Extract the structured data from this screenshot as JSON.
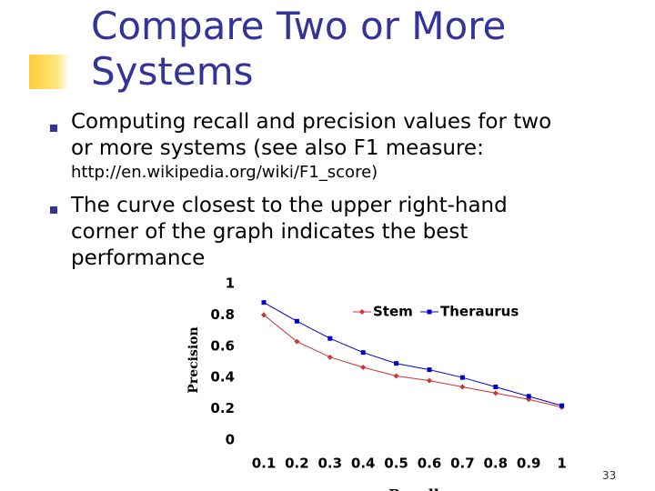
{
  "title": [
    "Compare Two or More",
    "Systems"
  ],
  "bullets": [
    {
      "lines": [
        "Computing recall and precision values for two",
        "or more systems (see also F1 measure:"
      ],
      "link": "http://en.wikipedia.org/wiki/F1_score)"
    },
    {
      "lines": [
        "The curve closest to the upper right-hand",
        "corner of the graph indicates the best",
        "performance"
      ]
    }
  ],
  "page_number": "33",
  "chart_data": {
    "type": "line",
    "x_label": "Recall",
    "y_label": "Precision",
    "categories": [
      "0.1",
      "0.2",
      "0.3",
      "0.4",
      "0.5",
      "0.6",
      "0.7",
      "0.8",
      "0.9",
      "1"
    ],
    "series": [
      {
        "name": "Stem",
        "color": "#cc3333",
        "marker": "diamond",
        "values": [
          0.8,
          0.63,
          0.53,
          0.465,
          0.41,
          0.38,
          0.34,
          0.3,
          0.26,
          0.21
        ]
      },
      {
        "name": "Theraurus",
        "color": "#0000cc",
        "marker": "square",
        "values": [
          0.88,
          0.76,
          0.65,
          0.56,
          0.49,
          0.45,
          0.4,
          0.34,
          0.28,
          0.22
        ]
      }
    ],
    "ylim": [
      0,
      1
    ],
    "yticks": [
      0,
      0.2,
      0.4,
      0.6,
      0.8,
      1
    ],
    "legend": "top"
  }
}
